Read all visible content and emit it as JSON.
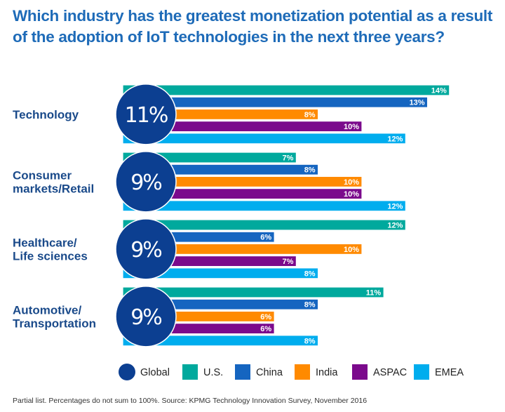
{
  "chart_data": {
    "type": "bar",
    "orientation": "horizontal",
    "title": "Which industry has the greatest monetization potential as a result of the adoption of IoT technologies in the next three years?",
    "categories": [
      "Technology",
      "Consumer markets/Retail",
      "Healthcare/Life sciences",
      "Automotive/Transportation"
    ],
    "category_lines": [
      [
        "Technology"
      ],
      [
        "Consumer",
        "markets/Retail"
      ],
      [
        "Healthcare/",
        "Life sciences"
      ],
      [
        "Automotive/",
        "Transportation"
      ]
    ],
    "global": {
      "name": "Global",
      "values": [
        11,
        9,
        9,
        9
      ],
      "color": "#0c3f91"
    },
    "series": [
      {
        "name": "U.S.",
        "values": [
          14,
          7,
          12,
          11
        ],
        "color": "#00a99d"
      },
      {
        "name": "China",
        "values": [
          13,
          8,
          6,
          8
        ],
        "color": "#1565c0"
      },
      {
        "name": "India",
        "values": [
          8,
          10,
          10,
          6
        ],
        "color": "#ff8a00"
      },
      {
        "name": "ASPAC",
        "values": [
          10,
          10,
          7,
          6
        ],
        "color": "#7b0a8c"
      },
      {
        "name": "EMEA",
        "values": [
          12,
          12,
          8,
          8
        ],
        "color": "#00adee"
      }
    ],
    "unit": "%",
    "xlabel": "",
    "ylabel": "",
    "xlim": [
      0,
      14
    ],
    "grid": false,
    "legend_position": "bottom"
  },
  "footnote": "Partial list. Percentages do not sum to 100%. Source: KPMG Technology Innovation Survey, November 2016"
}
